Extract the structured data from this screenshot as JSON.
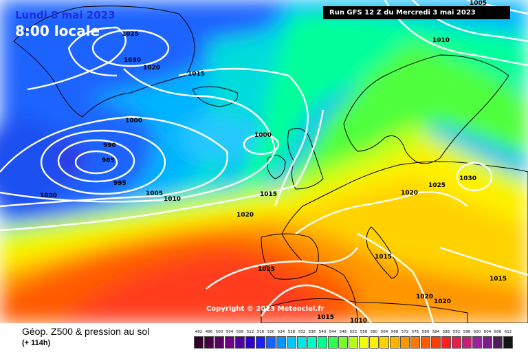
{
  "header": {
    "date": "Lundi 8 mai 2023",
    "local_time": "8:00 locale",
    "run": "Run GFS 12 Z du Mercredi 3 mai 2023"
  },
  "copyright": "Copyright © 2023 Meteociel.fr",
  "footer": {
    "title": "Géop. Z500 & pression au sol",
    "subtitle": "(+ 114h)"
  },
  "scale": {
    "ticks": [
      "492",
      "496",
      "500",
      "504",
      "508",
      "512",
      "516",
      "520",
      "524",
      "528",
      "532",
      "536",
      "540",
      "544",
      "548",
      "552",
      "556",
      "560",
      "564",
      "568",
      "572",
      "576",
      "580",
      "584",
      "588",
      "592",
      "596",
      "600",
      "604",
      "608",
      "612"
    ],
    "colors": [
      "#32002a",
      "#460048",
      "#5a0066",
      "#6e0085",
      "#5000a0",
      "#3200c8",
      "#1e1ef0",
      "#1464ff",
      "#0096ff",
      "#00c8ff",
      "#00e6e6",
      "#00ffc8",
      "#00ff8c",
      "#32ff50",
      "#78ff28",
      "#b4ff14",
      "#f0ff00",
      "#fff000",
      "#ffd200",
      "#ffb400",
      "#ff9600",
      "#ff7800",
      "#ff5a00",
      "#ff3c00",
      "#ff1e1e",
      "#e61e50",
      "#c81e78",
      "#a01ea0",
      "#7a1e8c",
      "#501e5a",
      "#141414"
    ]
  },
  "isobars": [
    {
      "value": "1025",
      "where": "Greenland"
    },
    {
      "value": "1030",
      "where": "Greenland"
    },
    {
      "value": "1020",
      "where": "Greenland"
    },
    {
      "value": "1015",
      "where": "Iceland"
    },
    {
      "value": "1000",
      "where": "Atlantic north"
    },
    {
      "value": "990",
      "where": "Low centre"
    },
    {
      "value": "985",
      "where": "Low centre"
    },
    {
      "value": "995",
      "where": "Low centre"
    },
    {
      "value": "1000",
      "where": "Atlantic west"
    },
    {
      "value": "1005",
      "where": "Atlantic"
    },
    {
      "value": "1010",
      "where": "Atlantic"
    },
    {
      "value": "1000",
      "where": "Scotland west"
    },
    {
      "value": "1015",
      "where": "Ireland south"
    },
    {
      "value": "1020",
      "where": "Biscay"
    },
    {
      "value": "1025",
      "where": "Azores"
    },
    {
      "value": "1010",
      "where": "Arctic"
    },
    {
      "value": "1005",
      "where": "Arctic top"
    },
    {
      "value": "1020",
      "where": "Central Europe"
    },
    {
      "value": "1025",
      "where": "Poland"
    },
    {
      "value": "1030",
      "where": "Russia"
    },
    {
      "value": "1015",
      "where": "Italy"
    },
    {
      "value": "1015",
      "where": "Black Sea"
    },
    {
      "value": "1020",
      "where": "Greece"
    },
    {
      "value": "1020",
      "where": "Aegean"
    },
    {
      "value": "1015",
      "where": "North Africa"
    },
    {
      "value": "1010",
      "where": "North Africa"
    }
  ]
}
